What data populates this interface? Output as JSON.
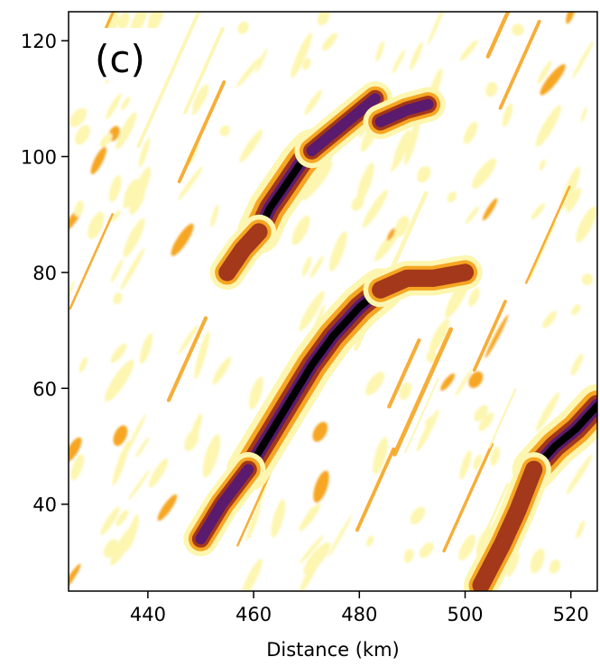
{
  "chart_data": {
    "type": "heatmap",
    "panel_label": "(c)",
    "xlabel": "Distance (km)",
    "ylabel": "",
    "xlim": [
      425,
      525
    ],
    "ylim": [
      25,
      125
    ],
    "x_ticks": [
      440,
      460,
      480,
      500,
      520
    ],
    "y_ticks": [
      40,
      60,
      80,
      100,
      120
    ],
    "x_tick_labels": [
      "440",
      "460",
      "480",
      "500",
      "520"
    ],
    "y_tick_labels": [
      "40",
      "60",
      "80",
      "100",
      "120"
    ],
    "grid": false,
    "colormap": "inferno_r (discrete levels)",
    "level_colors": [
      "#ffffff",
      "#fdf6b0",
      "#f6a623",
      "#a3381a",
      "#5a1a6e",
      "#000000"
    ],
    "features": [
      {
        "name": "band-upper",
        "level": 5,
        "points": [
          [
            461,
            87
          ],
          [
            463,
            91
          ],
          [
            466,
            95
          ],
          [
            469,
            99
          ],
          [
            471,
            101
          ]
        ]
      },
      {
        "name": "band-upper-tail",
        "level": 3,
        "points": [
          [
            455,
            80
          ],
          [
            458,
            84
          ],
          [
            461,
            87
          ]
        ]
      },
      {
        "name": "band-upper-head",
        "level": 4,
        "points": [
          [
            471,
            101
          ],
          [
            475,
            104
          ],
          [
            479,
            107
          ],
          [
            483,
            110
          ]
        ]
      },
      {
        "name": "blob-upper-right",
        "level": 4,
        "points": [
          [
            484,
            106
          ],
          [
            489,
            108
          ],
          [
            493,
            109
          ]
        ]
      },
      {
        "name": "band-middle",
        "level": 5,
        "points": [
          [
            459,
            46
          ],
          [
            463,
            52
          ],
          [
            467,
            58
          ],
          [
            471,
            64
          ],
          [
            475,
            69
          ],
          [
            480,
            74
          ],
          [
            484,
            77
          ]
        ]
      },
      {
        "name": "band-middle-tail",
        "level": 4,
        "points": [
          [
            450,
            34
          ],
          [
            454,
            40
          ],
          [
            459,
            46
          ]
        ]
      },
      {
        "name": "band-middle-head",
        "level": 3,
        "points": [
          [
            484,
            77
          ],
          [
            489,
            79
          ],
          [
            494,
            79
          ],
          [
            500,
            80
          ]
        ]
      },
      {
        "name": "band-lower-right",
        "level": 5,
        "points": [
          [
            513,
            46
          ],
          [
            517,
            50
          ],
          [
            521,
            53
          ],
          [
            525,
            57
          ]
        ]
      },
      {
        "name": "band-lower-right-tail",
        "level": 3,
        "points": [
          [
            503,
            26
          ],
          [
            507,
            33
          ],
          [
            510,
            39
          ],
          [
            513,
            46
          ]
        ]
      }
    ]
  }
}
